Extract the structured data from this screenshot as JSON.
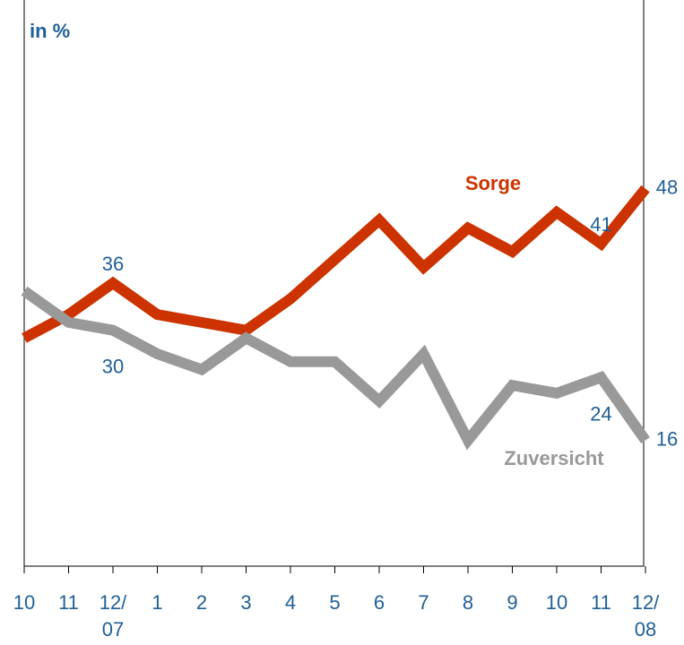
{
  "chart_data": {
    "type": "line",
    "y_label": "in %",
    "categories": [
      "10",
      "11",
      "12/\n07",
      "1",
      "2",
      "3",
      "4",
      "5",
      "6",
      "7",
      "8",
      "9",
      "10",
      "11",
      "12/\n08"
    ],
    "series": [
      {
        "name": "Sorge",
        "color": "#cc3300",
        "values": [
          29,
          32,
          36,
          32,
          31,
          30,
          34,
          39,
          44,
          38,
          43,
          40,
          45,
          41,
          48
        ],
        "value_labels": [
          null,
          null,
          "36",
          null,
          null,
          null,
          null,
          null,
          null,
          null,
          null,
          null,
          null,
          "41",
          "48"
        ]
      },
      {
        "name": "Zuversicht",
        "color": "#999999",
        "values": [
          35,
          31,
          30,
          27,
          25,
          29,
          26,
          26,
          21,
          27,
          16,
          23,
          22,
          24,
          16
        ],
        "value_labels": [
          null,
          null,
          "30",
          null,
          null,
          null,
          null,
          null,
          null,
          null,
          null,
          null,
          null,
          "24",
          "16"
        ]
      }
    ],
    "ylim": [
      0,
      72
    ]
  }
}
